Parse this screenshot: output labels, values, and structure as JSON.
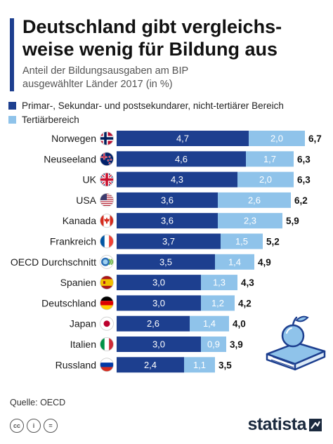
{
  "header": {
    "title_line1": "Deutschland gibt vergleichs-",
    "title_line2": "weise wenig für Bildung aus",
    "subtitle_line1": "Anteil der Bildungsausgaben am BIP",
    "subtitle_line2": "ausgewählter Länder 2017 (in %)",
    "accent_color": "#1d3f8f"
  },
  "legend": {
    "items": [
      {
        "label": "Primar-, Sekundar- und postsekundarer, nicht-tertiärer Bereich",
        "color": "#1d3f8f"
      },
      {
        "label": "Tertiärbereich",
        "color": "#8fc3ea"
      }
    ]
  },
  "chart_data": {
    "type": "bar",
    "orientation": "horizontal",
    "stacked": true,
    "categories": [
      "Norwegen",
      "Neuseeland",
      "UK",
      "USA",
      "Kanada",
      "Frankreich",
      "OECD Durchschnitt",
      "Spanien",
      "Deutschland",
      "Japan",
      "Italien",
      "Russland"
    ],
    "category_labels": [
      "Norwegen",
      "Neuseeland",
      "UK",
      "USA",
      "Kanada",
      "Frankreich",
      "OECD Durchschnitt",
      "Spanien",
      "Deutschland",
      "Japan",
      "Italien",
      "Russland"
    ],
    "series": [
      {
        "name": "Primar-, Sekundar- und postsekundarer, nicht-tertiärer Bereich",
        "color": "#1d3f8f",
        "values": [
          4.7,
          4.6,
          4.3,
          3.6,
          3.6,
          3.7,
          3.5,
          3.0,
          3.0,
          2.6,
          3.0,
          2.4
        ],
        "labels": [
          "4,7",
          "4,6",
          "4,3",
          "3,6",
          "3,6",
          "3,7",
          "3,5",
          "3,0",
          "3,0",
          "2,6",
          "3,0",
          "2,4"
        ]
      },
      {
        "name": "Tertiärbereich",
        "color": "#8fc3ea",
        "values": [
          2.0,
          1.7,
          2.0,
          2.6,
          2.3,
          1.5,
          1.4,
          1.3,
          1.2,
          1.4,
          0.9,
          1.1
        ],
        "labels": [
          "2,0",
          "1,7",
          "2,0",
          "2,6",
          "2,3",
          "1,5",
          "1,4",
          "1,3",
          "1,2",
          "1,4",
          "0,9",
          "1,1"
        ]
      }
    ],
    "totals": [
      6.7,
      6.3,
      6.3,
      6.2,
      5.9,
      5.2,
      4.9,
      4.3,
      4.2,
      4.0,
      3.9,
      3.5
    ],
    "total_labels": [
      "6,7",
      "6,3",
      "6,3",
      "6,2",
      "5,9",
      "5,2",
      "4,9",
      "4,3",
      "4,2",
      "4,0",
      "3,9",
      "3,5"
    ],
    "xlim": [
      0,
      6.7
    ],
    "flags": [
      "flag-norway",
      "flag-new-zealand",
      "flag-uk",
      "flag-usa",
      "flag-canada",
      "flag-france",
      "oecd-logo",
      "flag-spain",
      "flag-germany",
      "flag-japan",
      "flag-italy",
      "flag-russia"
    ],
    "grid": false,
    "legend_position": "top"
  },
  "footer": {
    "source": "Quelle: OECD",
    "cc_icons": [
      "cc",
      "i",
      "="
    ],
    "brand": "statista"
  }
}
